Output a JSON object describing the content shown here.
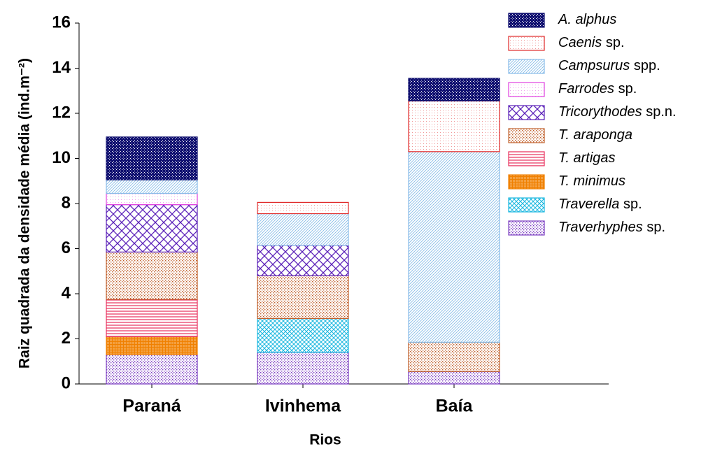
{
  "chart_data": {
    "type": "stacked_bar",
    "y_label": "Raiz quadrada da densidade média (ind.m⁻²)",
    "x_label": "Rios",
    "categories": [
      "Paraná",
      "Ivinhema",
      "Baía"
    ],
    "ylim": [
      0,
      16
    ],
    "yticks": [
      0,
      2,
      4,
      6,
      8,
      10,
      12,
      14,
      16
    ],
    "series": [
      {
        "name": "Traverhyphes sp.",
        "color": "#7a3cc0",
        "hatch": "dots",
        "values": [
          1.3,
          1.4,
          0.55
        ]
      },
      {
        "name": "Traverella sp.",
        "color": "#1cb8e0",
        "hatch": "crosshatch-fine",
        "values": [
          0,
          1.5,
          0
        ]
      },
      {
        "name": "T. minimus",
        "color": "#f08000",
        "hatch": "grid",
        "values": [
          0.8,
          0,
          0
        ]
      },
      {
        "name": "T. artigas",
        "color": "#e8305c",
        "hatch": "horizontal",
        "values": [
          1.65,
          0,
          0
        ]
      },
      {
        "name": "T. araponga",
        "color": "#c0602c",
        "hatch": "dots",
        "values": [
          2.1,
          1.9,
          1.3
        ]
      },
      {
        "name": "Tricorythodes sp.n.",
        "color": "#5a20b8",
        "hatch": "crosshatch",
        "values": [
          2.1,
          1.35,
          0
        ]
      },
      {
        "name": "Farrodes sp.",
        "color": "#e040e0",
        "hatch": "light",
        "values": [
          0.5,
          0,
          0
        ]
      },
      {
        "name": "Campsurus spp.",
        "color": "#88bce8",
        "hatch": "diagonal",
        "values": [
          0.6,
          1.4,
          8.45
        ]
      },
      {
        "name": "Caenis sp.",
        "color": "#e02828",
        "hatch": "light",
        "values": [
          0,
          0.5,
          2.25
        ]
      },
      {
        "name": "A. alphus",
        "color": "#101070",
        "hatch": "dense",
        "values": [
          1.9,
          0,
          1.0
        ]
      }
    ]
  }
}
